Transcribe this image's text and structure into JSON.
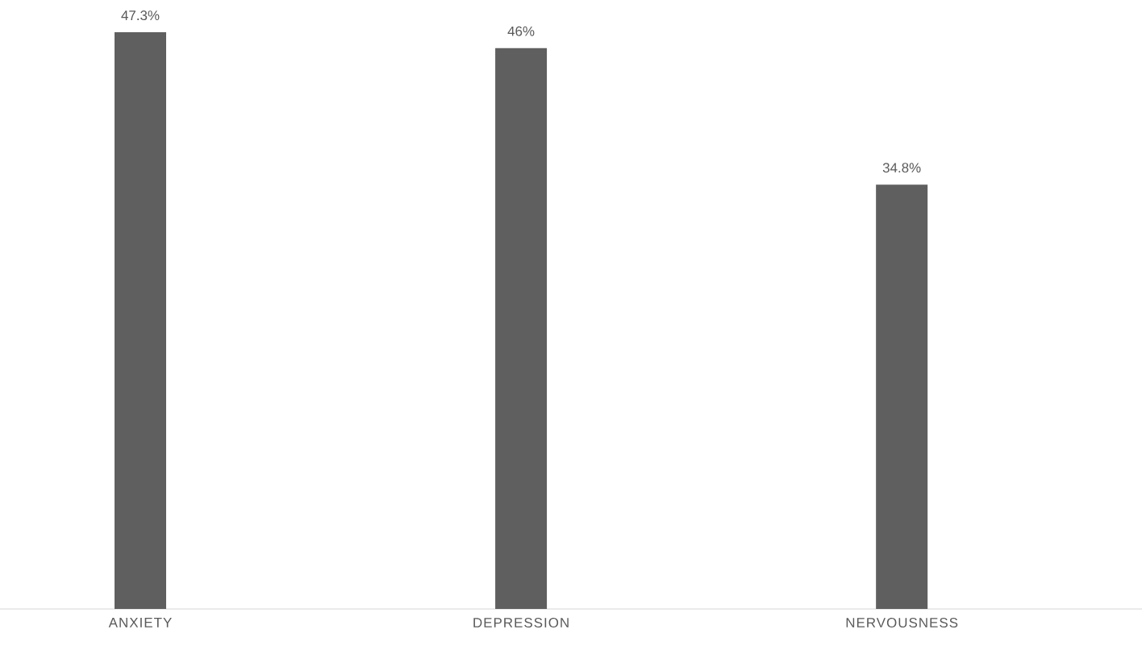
{
  "chart_data": {
    "type": "bar",
    "categories": [
      "ANXIETY",
      "DEPRESSION",
      "NERVOUSNESS"
    ],
    "values": [
      47.3,
      46,
      34.8
    ],
    "value_labels": [
      "47.3%",
      "46%",
      "34.8%"
    ],
    "color": "#5f5f5f"
  }
}
